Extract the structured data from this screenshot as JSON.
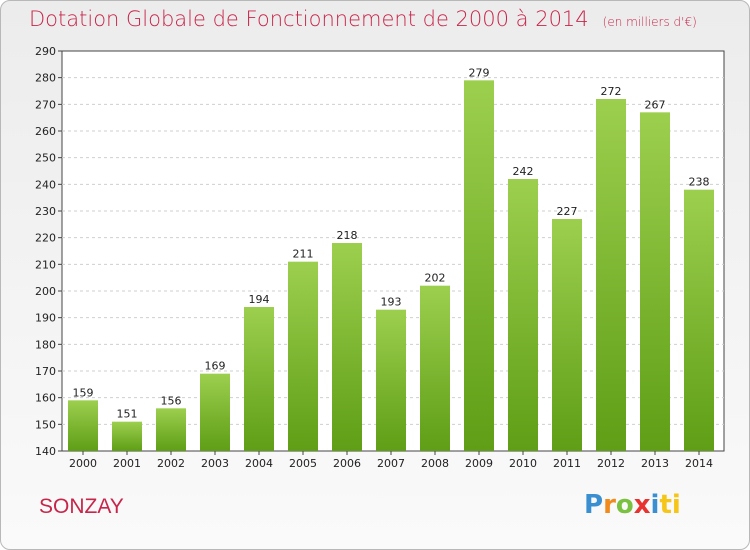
{
  "title": "Dotation Globale de Fonctionnement de 2000 à 2014",
  "subtitle": "(en milliers d'€)",
  "commune": "SONZAY",
  "logo": {
    "letters": [
      "P",
      "r",
      "o",
      "x",
      "i",
      "ti"
    ]
  },
  "colors": {
    "title": "#c8254a",
    "bar_top": "#9ccf4e",
    "bar_bottom": "#5f9e16"
  },
  "chart_data": {
    "type": "bar",
    "title": "Dotation Globale de Fonctionnement de 2000 à 2014",
    "subtitle": "(en milliers d'€)",
    "xlabel": "",
    "ylabel": "",
    "categories": [
      "2000",
      "2001",
      "2002",
      "2003",
      "2004",
      "2005",
      "2006",
      "2007",
      "2008",
      "2009",
      "2010",
      "2011",
      "2012",
      "2013",
      "2014"
    ],
    "values": [
      159,
      151,
      156,
      169,
      194,
      211,
      218,
      193,
      202,
      279,
      242,
      227,
      272,
      267,
      238
    ],
    "ylim": [
      140,
      290
    ],
    "yticks": [
      140,
      150,
      160,
      170,
      180,
      190,
      200,
      210,
      220,
      230,
      240,
      250,
      260,
      270,
      280,
      290
    ],
    "grid": true,
    "legend": "none"
  }
}
